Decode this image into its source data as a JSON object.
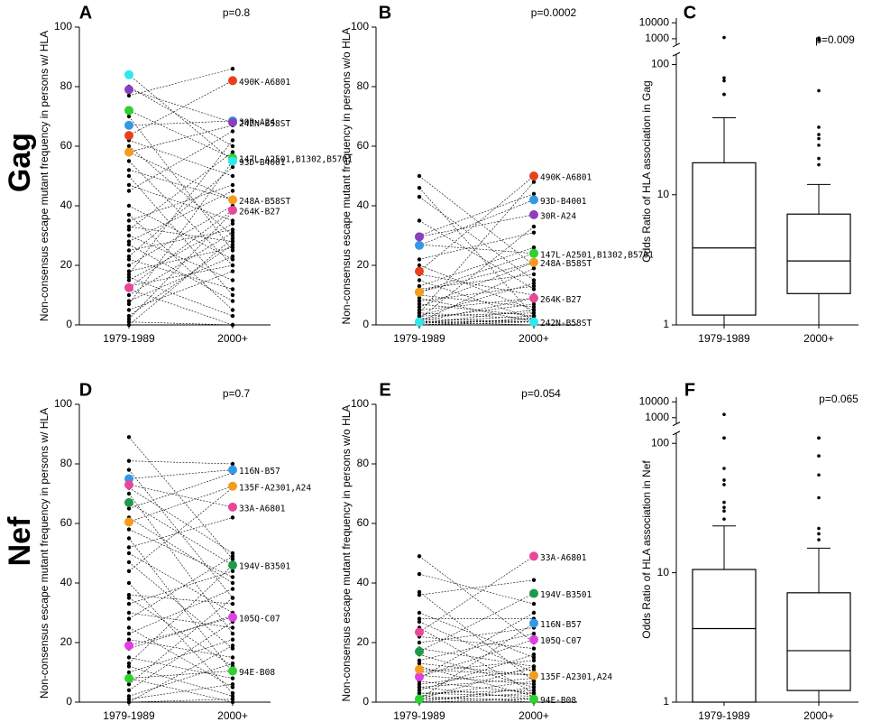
{
  "row_labels": [
    "Gag",
    "Nef"
  ],
  "chart_data": [
    {
      "type": "slope",
      "panel_label": "A",
      "annotation": "p=0.8",
      "y_label": "Non-consensus escape mutant frequency in persons w/ HLA",
      "categories": [
        "1979-1989",
        "2000+"
      ],
      "ylim": [
        0,
        100
      ],
      "yticks": [
        0,
        20,
        40,
        60,
        80,
        100
      ],
      "pair_color": "#000000",
      "pairs": [
        [
          80,
          60
        ],
        [
          77,
          86
        ],
        [
          70,
          25
        ],
        [
          62,
          50
        ],
        [
          60,
          30
        ],
        [
          58,
          67
        ],
        [
          55,
          20
        ],
        [
          52,
          42
        ],
        [
          50,
          10
        ],
        [
          47,
          35
        ],
        [
          45,
          65
        ],
        [
          40,
          22
        ],
        [
          37,
          5
        ],
        [
          35,
          47
        ],
        [
          33,
          28
        ],
        [
          32,
          58
        ],
        [
          30,
          15
        ],
        [
          28,
          45
        ],
        [
          27,
          8
        ],
        [
          25,
          32
        ],
        [
          23,
          53
        ],
        [
          22,
          12
        ],
        [
          20,
          40
        ],
        [
          18,
          26
        ],
        [
          17,
          62
        ],
        [
          16,
          3
        ],
        [
          15,
          34
        ],
        [
          13,
          20
        ],
        [
          12,
          0
        ],
        [
          10,
          31
        ],
        [
          8,
          23
        ],
        [
          7,
          55
        ],
        [
          5,
          18
        ],
        [
          3,
          27
        ],
        [
          1,
          0
        ],
        [
          0,
          29
        ],
        [
          2,
          38
        ]
      ],
      "series": [
        {
          "name": "490K-A6801",
          "color": "#e8401c",
          "values": [
            63.6,
            82
          ]
        },
        {
          "name": "30R-A24",
          "color": "#3399e6",
          "values": [
            67,
            68.5
          ]
        },
        {
          "name": "242N-B58ST",
          "color": "#8b3fbf",
          "values": [
            79,
            68
          ]
        },
        {
          "name": "147L-A2501,B1302,B5701",
          "color": "#2ed12e",
          "values": [
            72,
            56
          ]
        },
        {
          "name": "93D-B4001",
          "color": "#2ee8f0",
          "values": [
            84,
            55
          ]
        },
        {
          "name": "248A-B58ST",
          "color": "#f39c1f",
          "values": [
            58,
            42
          ]
        },
        {
          "name": "264K-B27",
          "color": "#e8479a",
          "values": [
            12.5,
            38.5
          ]
        }
      ]
    },
    {
      "type": "slope",
      "panel_label": "B",
      "annotation": "p=0.0002",
      "y_label": "Non-consensus escape mutant frequency in persons w/o HLA",
      "categories": [
        "1979-1989",
        "2000+"
      ],
      "ylim": [
        0,
        100
      ],
      "yticks": [
        0,
        20,
        40,
        60,
        80,
        100
      ],
      "pair_color": "#000000",
      "pairs": [
        [
          50,
          20
        ],
        [
          46,
          3
        ],
        [
          43,
          15
        ],
        [
          35,
          12
        ],
        [
          30,
          44
        ],
        [
          27,
          24
        ],
        [
          22,
          31
        ],
        [
          20,
          5
        ],
        [
          17,
          10
        ],
        [
          15,
          2
        ],
        [
          13,
          26
        ],
        [
          12,
          17
        ],
        [
          10,
          6
        ],
        [
          9,
          1
        ],
        [
          8,
          13
        ],
        [
          7,
          3
        ],
        [
          6,
          21
        ],
        [
          5,
          9
        ],
        [
          4,
          2
        ],
        [
          3,
          14
        ],
        [
          3,
          4
        ],
        [
          2,
          7
        ],
        [
          2,
          1
        ],
        [
          1,
          19
        ],
        [
          1,
          3
        ],
        [
          1,
          0
        ],
        [
          0.5,
          2
        ],
        [
          0.5,
          5
        ],
        [
          0,
          1
        ],
        [
          0,
          2
        ],
        [
          2,
          33
        ],
        [
          4,
          48
        ]
      ],
      "series": [
        {
          "name": "490K-A6801",
          "color": "#e8401c",
          "values": [
            18,
            50
          ]
        },
        {
          "name": "93D-B4001",
          "color": "#3399e6",
          "values": [
            26.7,
            42
          ]
        },
        {
          "name": "30R-A24",
          "color": "#8b3fbf",
          "values": [
            29.6,
            37
          ]
        },
        {
          "name": "147L-A2501,B1302,B5701",
          "color": "#2ed12e",
          "values": [
            11,
            24
          ]
        },
        {
          "name": "248A-B58ST",
          "color": "#f39c1f",
          "values": [
            11,
            21
          ]
        },
        {
          "name": "264K-B27",
          "color": "#e8479a",
          "values": [
            1,
            9
          ]
        },
        {
          "name": "242N-B58ST",
          "color": "#2ee8f0",
          "values": [
            1,
            1
          ]
        }
      ]
    },
    {
      "type": "box",
      "panel_label": "C",
      "annotation": "p=0.009",
      "y_label": "Odds Ratio of HLA association in Gag",
      "categories": [
        "1979-1989",
        "2000+"
      ],
      "log": true,
      "ylim": [
        1,
        20000
      ],
      "axis_break": [
        120,
        400
      ],
      "yticks": [
        1,
        10,
        100,
        1000,
        10000
      ],
      "color": "#000000",
      "boxes": [
        {
          "whislo": 1,
          "q1": 1.19,
          "med": 3.9,
          "q3": 17.6,
          "whishi": 39,
          "fliers": [
            1200,
            79,
            75,
            59,
            59
          ]
        },
        {
          "whislo": 1,
          "q1": 1.74,
          "med": 3.1,
          "q3": 7.1,
          "whishi": 12,
          "fliers": [
            1100,
            800,
            63,
            33,
            29,
            27,
            24,
            19,
            17
          ]
        }
      ]
    },
    {
      "type": "slope",
      "panel_label": "D",
      "annotation": "p=0.7",
      "y_label": "Non-consensus escape mutant frequency in persons w/ HLA",
      "categories": [
        "1979-1989",
        "2000+"
      ],
      "ylim": [
        0,
        100
      ],
      "yticks": [
        0,
        20,
        40,
        60,
        80,
        100
      ],
      "pair_color": "#000000",
      "pairs": [
        [
          89,
          48
        ],
        [
          81,
          80
        ],
        [
          78,
          35
        ],
        [
          72,
          50
        ],
        [
          70,
          23
        ],
        [
          65,
          77
        ],
        [
          62,
          40
        ],
        [
          58,
          42
        ],
        [
          55,
          10
        ],
        [
          52,
          62
        ],
        [
          50,
          30
        ],
        [
          47,
          18
        ],
        [
          44,
          72
        ],
        [
          40,
          3
        ],
        [
          36,
          33
        ],
        [
          35,
          12
        ],
        [
          33,
          44
        ],
        [
          30,
          25
        ],
        [
          28,
          49
        ],
        [
          25,
          5
        ],
        [
          23,
          38
        ],
        [
          21,
          15
        ],
        [
          18,
          29
        ],
        [
          15,
          8
        ],
        [
          13,
          46
        ],
        [
          12,
          2
        ],
        [
          10,
          21
        ],
        [
          8,
          0
        ],
        [
          6,
          35
        ],
        [
          4,
          27
        ],
        [
          2,
          13
        ],
        [
          1,
          6
        ],
        [
          0,
          19
        ],
        [
          0,
          1
        ]
      ],
      "series": [
        {
          "name": "116N-B57",
          "color": "#3399e6",
          "values": [
            75,
            78
          ]
        },
        {
          "name": "135F-A2301,A24",
          "color": "#f39c1f",
          "values": [
            60.5,
            72.5
          ]
        },
        {
          "name": "33A-A6801",
          "color": "#e8479a",
          "values": [
            73,
            65.5
          ]
        },
        {
          "name": "194V-B3501",
          "color": "#1f9a4a",
          "values": [
            67,
            46
          ]
        },
        {
          "name": "105Q-C07",
          "color": "#e040e0",
          "values": [
            19,
            28.5
          ]
        },
        {
          "name": "94E-B08",
          "color": "#2ed12e",
          "values": [
            8,
            10.5
          ]
        }
      ]
    },
    {
      "type": "slope",
      "panel_label": "E",
      "annotation": "p=0.054",
      "y_label": "Non-consensus escape mutant frequency in persons w/o HLA",
      "categories": [
        "1979-1989",
        "2000+"
      ],
      "ylim": [
        0,
        100
      ],
      "yticks": [
        0,
        20,
        40,
        60,
        80,
        100
      ],
      "pair_color": "#000000",
      "pairs": [
        [
          49,
          20
        ],
        [
          43,
          33
        ],
        [
          37,
          7
        ],
        [
          36,
          41
        ],
        [
          30,
          15
        ],
        [
          28,
          28
        ],
        [
          27,
          10
        ],
        [
          25,
          3
        ],
        [
          22,
          18
        ],
        [
          20,
          25
        ],
        [
          18,
          12
        ],
        [
          16,
          5
        ],
        [
          14,
          23
        ],
        [
          13,
          9
        ],
        [
          12,
          2
        ],
        [
          10,
          14
        ],
        [
          9,
          6
        ],
        [
          8,
          30
        ],
        [
          7,
          3
        ],
        [
          6,
          11
        ],
        [
          5,
          1
        ],
        [
          5,
          8
        ],
        [
          4,
          16
        ],
        [
          3,
          4
        ],
        [
          3,
          2
        ],
        [
          2,
          7
        ],
        [
          2,
          0
        ],
        [
          1,
          12
        ],
        [
          1,
          3
        ],
        [
          0,
          1
        ],
        [
          0,
          5
        ]
      ],
      "series": [
        {
          "name": "33A-A6801",
          "color": "#e8479a",
          "values": [
            23.5,
            49
          ]
        },
        {
          "name": "194V-B3501",
          "color": "#1f9a4a",
          "values": [
            17,
            36.5
          ]
        },
        {
          "name": "116N-B57",
          "color": "#3399e6",
          "values": [
            1,
            26.5
          ]
        },
        {
          "name": "105Q-C07",
          "color": "#e040e0",
          "values": [
            8.5,
            21
          ]
        },
        {
          "name": "135F-A2301,A24",
          "color": "#f39c1f",
          "values": [
            11,
            9
          ]
        },
        {
          "name": "94E-B08",
          "color": "#2ed12e",
          "values": [
            1,
            1
          ]
        }
      ]
    },
    {
      "type": "box",
      "panel_label": "F",
      "annotation": "p=0.065",
      "y_label": "Odds Ratio of HLA association in Nef",
      "categories": [
        "1979-1989",
        "2000+"
      ],
      "log": true,
      "ylim": [
        1,
        20000
      ],
      "axis_break": [
        120,
        400
      ],
      "yticks": [
        1,
        10,
        100,
        1000,
        10000
      ],
      "color": "#000000",
      "boxes": [
        {
          "whislo": 1,
          "q1": 1,
          "med": 3.7,
          "q3": 10.6,
          "whishi": 23,
          "fliers": [
            1600,
            110,
            110,
            64,
            52,
            48,
            35,
            32,
            30,
            26
          ]
        },
        {
          "whislo": 1,
          "q1": 1.23,
          "med": 2.5,
          "q3": 7.0,
          "whishi": 15.5,
          "fliers": [
            110,
            110,
            80,
            80,
            57,
            38,
            22,
            20,
            18
          ]
        }
      ]
    }
  ]
}
